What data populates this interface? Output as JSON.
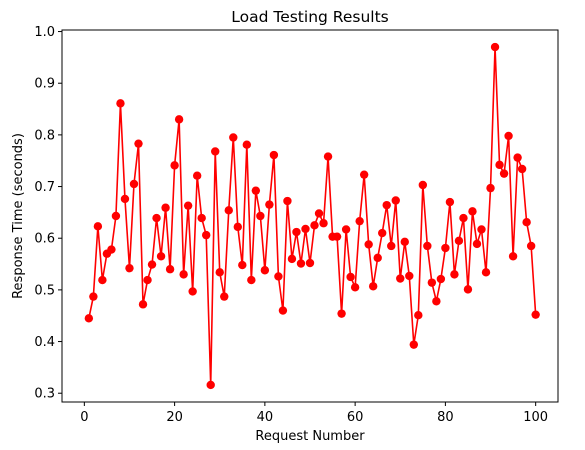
{
  "chart_data": {
    "type": "line",
    "title": "Load Testing Results",
    "xlabel": "Request Number",
    "ylabel": "Response Time (seconds)",
    "xlim": [
      -4.95,
      104.95
    ],
    "ylim": [
      0.283,
      1.003
    ],
    "xticks": [
      0,
      20,
      40,
      60,
      80,
      100
    ],
    "yticks": [
      0.3,
      0.4,
      0.5,
      0.6,
      0.7,
      0.8,
      0.9,
      1.0
    ],
    "ytick_labels": [
      "0.3",
      "0.4",
      "0.5",
      "0.6",
      "0.7",
      "0.8",
      "0.9",
      "1.0"
    ],
    "grid": false,
    "legend": "none",
    "color": "#ff0000",
    "marker": "circle",
    "series": [
      {
        "x": [
          1,
          2,
          3,
          4,
          5,
          6,
          7,
          8,
          9,
          10,
          11,
          12,
          13,
          14,
          15,
          16,
          17,
          18,
          19,
          20,
          21,
          22,
          23,
          24,
          25,
          26,
          27,
          28,
          29,
          30,
          31,
          32,
          33,
          34,
          35,
          36,
          37,
          38,
          39,
          40,
          41,
          42,
          43,
          44,
          45,
          46,
          47,
          48,
          49,
          50,
          51,
          52,
          53,
          54,
          55,
          56,
          57,
          58,
          59,
          60,
          61,
          62,
          63,
          64,
          65,
          66,
          67,
          68,
          69,
          70,
          71,
          72,
          73,
          74,
          75,
          76,
          77,
          78,
          79,
          80,
          81,
          82,
          83,
          84,
          85,
          86,
          87,
          88,
          89,
          90,
          91,
          92,
          93,
          94,
          95,
          96,
          97,
          98,
          99,
          100
        ],
        "values": [
          0.445,
          0.487,
          0.623,
          0.519,
          0.57,
          0.578,
          0.643,
          0.861,
          0.676,
          0.542,
          0.705,
          0.783,
          0.472,
          0.519,
          0.549,
          0.639,
          0.565,
          0.659,
          0.54,
          0.741,
          0.83,
          0.53,
          0.663,
          0.497,
          0.721,
          0.639,
          0.606,
          0.316,
          0.768,
          0.534,
          0.487,
          0.654,
          0.795,
          0.622,
          0.548,
          0.781,
          0.519,
          0.692,
          0.643,
          0.538,
          0.665,
          0.761,
          0.526,
          0.46,
          0.672,
          0.56,
          0.612,
          0.551,
          0.618,
          0.552,
          0.625,
          0.648,
          0.629,
          0.758,
          0.603,
          0.603,
          0.454,
          0.617,
          0.525,
          0.505,
          0.633,
          0.723,
          0.588,
          0.507,
          0.562,
          0.61,
          0.664,
          0.585,
          0.673,
          0.522,
          0.593,
          0.527,
          0.394,
          0.451,
          0.703,
          0.585,
          0.514,
          0.478,
          0.521,
          0.581,
          0.67,
          0.53,
          0.595,
          0.639,
          0.501,
          0.652,
          0.589,
          0.617,
          0.534,
          0.697,
          0.97,
          0.742,
          0.725,
          0.798,
          0.565,
          0.756,
          0.734,
          0.631,
          0.585,
          0.452
        ]
      }
    ]
  }
}
